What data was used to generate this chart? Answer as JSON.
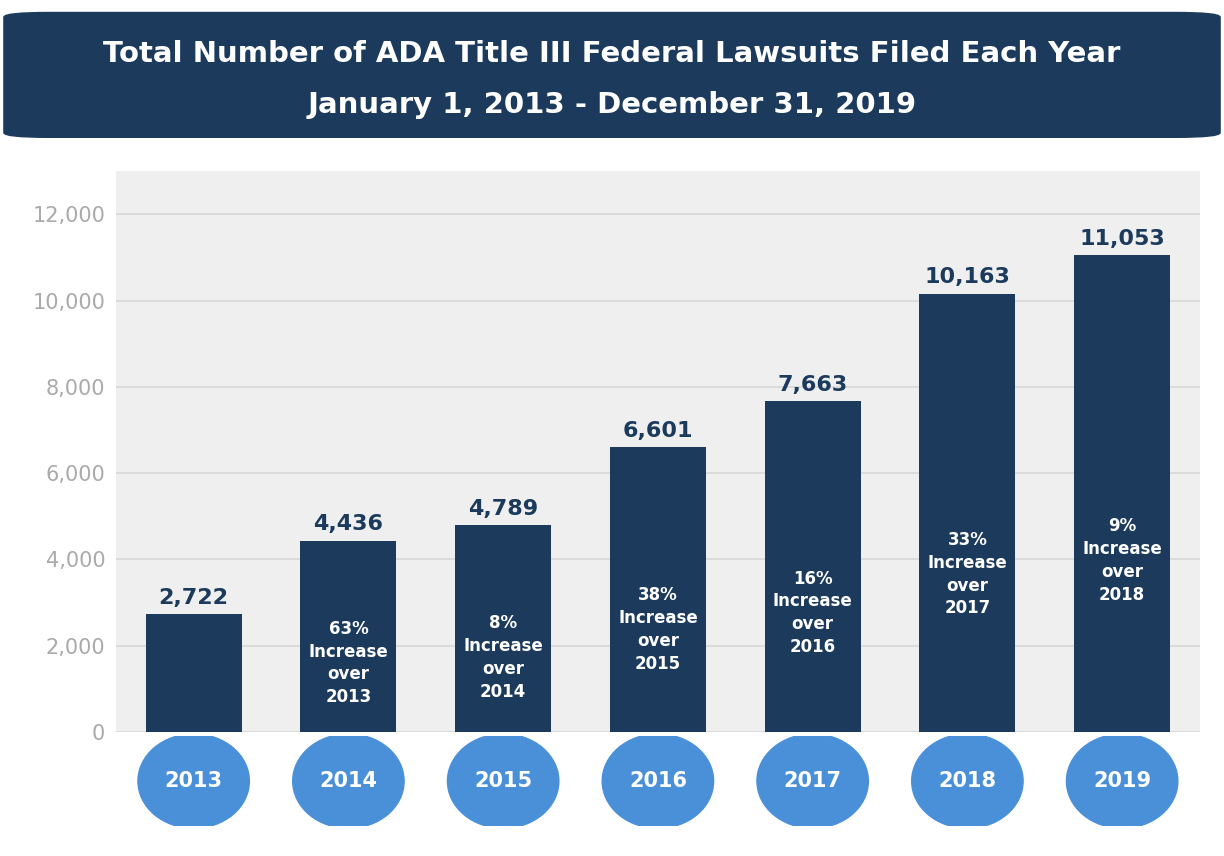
{
  "title_line1": "Total Number of ADA Title III Federal Lawsuits Filed Each Year",
  "title_line2": "January 1, 2013 - December 31, 2019",
  "years": [
    "2013",
    "2014",
    "2015",
    "2016",
    "2017",
    "2018",
    "2019"
  ],
  "values": [
    2722,
    4436,
    4789,
    6601,
    7663,
    10163,
    11053
  ],
  "value_labels": [
    "2,722",
    "4,436",
    "4,789",
    "6,601",
    "7,663",
    "10,163",
    "11,053"
  ],
  "increase_labels": [
    "",
    "63%\nIncrease\nover\n2013",
    "8%\nIncrease\nover\n2014",
    "38%\nIncrease\nover\n2015",
    "16%\nIncrease\nover\n2016",
    "33%\nIncrease\nover\n2017",
    "9%\nIncrease\nover\n2018"
  ],
  "bar_color": "#1b3a5c",
  "title_bg_color": "#1b3a5c",
  "title_text_color": "#ffffff",
  "chart_bg_color": "#efefef",
  "outer_bg_color": "#ffffff",
  "year_bubble_color": "#4a90d9",
  "year_text_color": "#ffffff",
  "value_label_color": "#1b3a5c",
  "increase_text_color": "#ffffff",
  "ytick_color": "#aaaaaa",
  "grid_color": "#d8d8d8",
  "ylim": [
    0,
    13000
  ],
  "yticks": [
    0,
    2000,
    4000,
    6000,
    8000,
    10000,
    12000
  ],
  "ytick_labels": [
    "0",
    "2,000",
    "4,000",
    "6,000",
    "8,000",
    "10,000",
    "12,000"
  ]
}
